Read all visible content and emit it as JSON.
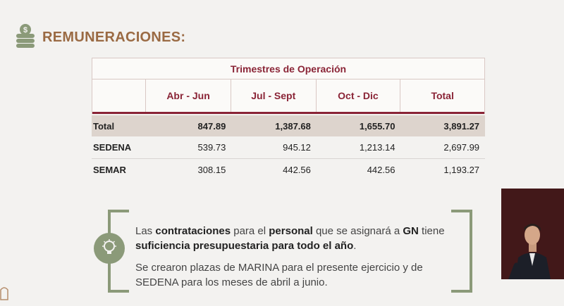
{
  "header": {
    "title": "REMUNERACIONES:",
    "icon": "coin-stack-icon"
  },
  "table": {
    "group_header": "Trimestres de Operación",
    "columns": [
      "",
      "Abr - Jun",
      "Jul - Sept",
      "Oct - Dic",
      "Total"
    ],
    "rows": [
      {
        "label": "Total",
        "values": [
          "847.89",
          "1,387.68",
          "1,655.70",
          "3,891.27"
        ]
      },
      {
        "label": "SEDENA",
        "values": [
          "539.73",
          "945.12",
          "1,213.14",
          "2,697.99"
        ]
      },
      {
        "label": "SEMAR",
        "values": [
          "308.15",
          "442.56",
          "442.56",
          "1,193.27"
        ]
      }
    ]
  },
  "info": {
    "icon": "lightbulb-icon",
    "p1": {
      "t1": "Las ",
      "b1": "contrataciones",
      "t2": " para el ",
      "b2": "personal",
      "t3": " que se asignará a ",
      "b3": "GN",
      "t4": " tiene ",
      "b4": "suficiencia presupuestaria para todo el año",
      "t5": "."
    },
    "p2": "Se crearon plazas de MARINA para el presente ejercicio y de SEDENA para los meses de abril a junio."
  },
  "colors": {
    "accent": "#8a2436",
    "title": "#9a6a43",
    "green": "#8b9a79",
    "total_row_bg": "#ddd4cd"
  }
}
